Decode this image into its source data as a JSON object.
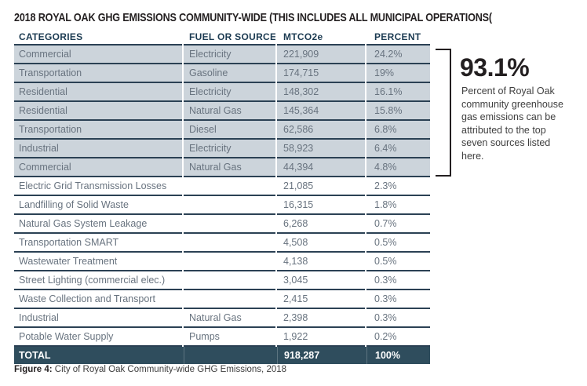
{
  "title": "2018 ROYAL OAK GHG EMISSIONS COMMUNITY-WIDE (THIS INCLUDES ALL MUNICIPAL OPERATIONS(",
  "table": {
    "columns": [
      "CATEGORIES",
      "FUEL OR SOURCE",
      "MTCO2e",
      "PERCENT"
    ],
    "rows": [
      {
        "category": "Commercial",
        "fuel": "Electricity",
        "mtco2e": "221,909",
        "percent": "24.2%",
        "highlight": true
      },
      {
        "category": "Transportation",
        "fuel": "Gasoline",
        "mtco2e": "174,715",
        "percent": "19%",
        "highlight": true
      },
      {
        "category": "Residential",
        "fuel": "Electricity",
        "mtco2e": "148,302",
        "percent": "16.1%",
        "highlight": true
      },
      {
        "category": "Residential",
        "fuel": "Natural Gas",
        "mtco2e": "145,364",
        "percent": "15.8%",
        "highlight": true
      },
      {
        "category": "Transportation",
        "fuel": "Diesel",
        "mtco2e": "62,586",
        "percent": "6.8%",
        "highlight": true
      },
      {
        "category": "Industrial",
        "fuel": "Electricity",
        "mtco2e": "58,923",
        "percent": "6.4%",
        "highlight": true
      },
      {
        "category": "Commercial",
        "fuel": "Natural Gas",
        "mtco2e": "44,394",
        "percent": "4.8%",
        "highlight": true
      },
      {
        "category": "Electric Grid Transmission Losses",
        "fuel": "",
        "mtco2e": "21,085",
        "percent": "2.3%",
        "highlight": false
      },
      {
        "category": "Landfilling of Solid Waste",
        "fuel": "",
        "mtco2e": "16,315",
        "percent": "1.8%",
        "highlight": false
      },
      {
        "category": "Natural Gas System Leakage",
        "fuel": "",
        "mtco2e": "6,268",
        "percent": "0.7%",
        "highlight": false
      },
      {
        "category": "Transportation SMART",
        "fuel": "",
        "mtco2e": "4,508",
        "percent": "0.5%",
        "highlight": false
      },
      {
        "category": "Wastewater Treatment",
        "fuel": "",
        "mtco2e": "4,138",
        "percent": "0.5%",
        "highlight": false
      },
      {
        "category": "Street Lighting (commercial elec.)",
        "fuel": "",
        "mtco2e": "3,045",
        "percent": "0.3%",
        "highlight": false
      },
      {
        "category": "Waste Collection and Transport",
        "fuel": "",
        "mtco2e": "2,415",
        "percent": "0.3%",
        "highlight": false
      },
      {
        "category": "Industrial",
        "fuel": "Natural Gas",
        "mtco2e": "2,398",
        "percent": "0.3%",
        "highlight": false
      },
      {
        "category": "Potable Water Supply",
        "fuel": "Pumps",
        "mtco2e": "1,922",
        "percent": "0.2%",
        "highlight": false
      }
    ],
    "total": {
      "label": "TOTAL",
      "mtco2e": "918,287",
      "percent": "100%"
    }
  },
  "callout": {
    "stat": "93.1%",
    "description": "Percent of Royal Oak community greenhouse gas emissions can be attributed to the top seven sources listed here."
  },
  "caption": {
    "label": "Figure 4:",
    "text": "City of Royal Oak Community-wide GHG Emissions, 2018"
  },
  "colors": {
    "highlight_row_bg": "#ccd4db",
    "row_line": "#2b4154",
    "header_text": "#1c3b52",
    "body_text": "#68737f",
    "total_bg": "#2f4d5d",
    "total_text": "#ffffff",
    "ink": "#231f20"
  }
}
